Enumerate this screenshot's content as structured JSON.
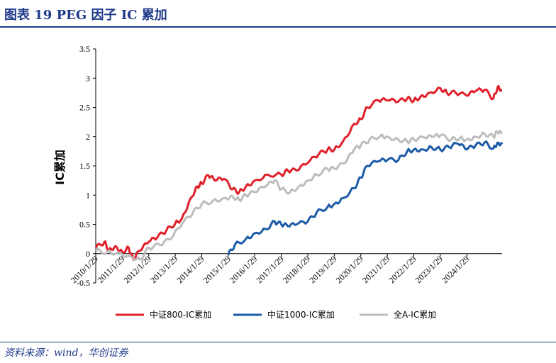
{
  "header": {
    "title": "图表 19   PEG 因子 IC 累加"
  },
  "footer": {
    "source": "资料来源：wind，华创证券"
  },
  "chart_data": {
    "type": "line",
    "ylabel": "IC累加",
    "ylim": [
      -0.5,
      3.5
    ],
    "yticks": [
      "-0.5",
      "0",
      "0.5",
      "1",
      "1.5",
      "2",
      "2.5",
      "3",
      "3.5"
    ],
    "xlim": [
      "2010-01-29",
      "2025-05-29"
    ],
    "xticks": [
      "2010/1/29",
      "2011/1/29",
      "2012/1/29",
      "2013/1/29",
      "2014/1/29",
      "2015/1/29",
      "2016/1/29",
      "2017/1/29",
      "2018/1/29",
      "2019/1/29",
      "2020/1/29",
      "2021/1/29",
      "2022/1/29",
      "2023/1/29",
      "2024/1/29"
    ],
    "grid": false,
    "legend_position": "bottom",
    "series": [
      {
        "name": "中证800-IC累加",
        "color": "#e0202a",
        "points": [
          [
            "2010-01-29",
            0.1
          ],
          [
            "2010-05-29",
            0.2
          ],
          [
            "2010-07-29",
            0.06
          ],
          [
            "2010-10-29",
            0.13
          ],
          [
            "2011-01-29",
            0.03
          ],
          [
            "2011-04-29",
            0.1
          ],
          [
            "2011-06-29",
            -0.1
          ],
          [
            "2011-09-29",
            0.05
          ],
          [
            "2012-01-29",
            0.2
          ],
          [
            "2012-05-29",
            0.28
          ],
          [
            "2012-09-29",
            0.4
          ],
          [
            "2013-01-29",
            0.52
          ],
          [
            "2013-04-29",
            0.6
          ],
          [
            "2013-08-29",
            0.95
          ],
          [
            "2013-11-29",
            1.15
          ],
          [
            "2014-01-29",
            1.2
          ],
          [
            "2014-04-29",
            1.34
          ],
          [
            "2014-07-29",
            1.25
          ],
          [
            "2014-11-29",
            1.28
          ],
          [
            "2015-03-29",
            1.1
          ],
          [
            "2015-06-29",
            1.05
          ],
          [
            "2015-09-29",
            1.15
          ],
          [
            "2016-01-29",
            1.25
          ],
          [
            "2016-07-29",
            1.35
          ],
          [
            "2017-01-29",
            1.35
          ],
          [
            "2017-04-29",
            1.42
          ],
          [
            "2017-08-29",
            1.42
          ],
          [
            "2018-01-29",
            1.55
          ],
          [
            "2018-06-29",
            1.7
          ],
          [
            "2018-10-29",
            1.78
          ],
          [
            "2019-01-29",
            1.78
          ],
          [
            "2019-05-29",
            1.92
          ],
          [
            "2019-10-29",
            2.22
          ],
          [
            "2020-01-29",
            2.3
          ],
          [
            "2020-04-29",
            2.5
          ],
          [
            "2020-09-29",
            2.62
          ],
          [
            "2021-01-29",
            2.62
          ],
          [
            "2021-06-29",
            2.6
          ],
          [
            "2021-10-29",
            2.65
          ],
          [
            "2022-01-29",
            2.62
          ],
          [
            "2022-04-29",
            2.68
          ],
          [
            "2022-08-29",
            2.75
          ],
          [
            "2023-01-29",
            2.83
          ],
          [
            "2023-04-29",
            2.75
          ],
          [
            "2023-08-29",
            2.75
          ],
          [
            "2024-01-29",
            2.7
          ],
          [
            "2024-05-29",
            2.78
          ],
          [
            "2024-09-29",
            2.8
          ],
          [
            "2025-01-29",
            2.65
          ],
          [
            "2025-03-29",
            2.85
          ],
          [
            "2025-05-29",
            2.8
          ]
        ]
      },
      {
        "name": "中证1000-IC累加",
        "color": "#1c5ba7",
        "points": [
          [
            "2015-01-29",
            -0.02
          ],
          [
            "2015-04-29",
            0.15
          ],
          [
            "2015-09-29",
            0.25
          ],
          [
            "2016-01-29",
            0.35
          ],
          [
            "2016-06-29",
            0.42
          ],
          [
            "2016-10-29",
            0.55
          ],
          [
            "2017-01-29",
            0.5
          ],
          [
            "2017-04-29",
            0.47
          ],
          [
            "2017-08-29",
            0.5
          ],
          [
            "2018-01-29",
            0.55
          ],
          [
            "2018-05-29",
            0.7
          ],
          [
            "2018-10-29",
            0.8
          ],
          [
            "2019-01-29",
            0.85
          ],
          [
            "2019-05-29",
            0.95
          ],
          [
            "2019-10-29",
            1.12
          ],
          [
            "2020-01-29",
            1.3
          ],
          [
            "2020-04-29",
            1.5
          ],
          [
            "2020-09-29",
            1.58
          ],
          [
            "2021-01-29",
            1.6
          ],
          [
            "2021-06-29",
            1.6
          ],
          [
            "2021-10-29",
            1.75
          ],
          [
            "2022-01-29",
            1.78
          ],
          [
            "2022-05-29",
            1.78
          ],
          [
            "2022-09-29",
            1.82
          ],
          [
            "2023-01-29",
            1.78
          ],
          [
            "2023-05-29",
            1.82
          ],
          [
            "2023-09-29",
            1.88
          ],
          [
            "2024-01-29",
            1.78
          ],
          [
            "2024-05-29",
            1.85
          ],
          [
            "2024-09-29",
            1.9
          ],
          [
            "2025-01-29",
            1.8
          ],
          [
            "2025-03-29",
            1.9
          ],
          [
            "2025-05-29",
            1.87
          ]
        ]
      },
      {
        "name": "全A-IC累加",
        "color": "#bdbdbd",
        "points": [
          [
            "2010-01-29",
            0.05
          ],
          [
            "2010-06-29",
            0.02
          ],
          [
            "2010-11-29",
            0.02
          ],
          [
            "2011-05-29",
            -0.05
          ],
          [
            "2011-09-29",
            -0.1
          ],
          [
            "2012-01-29",
            0.1
          ],
          [
            "2012-06-29",
            0.15
          ],
          [
            "2012-11-29",
            0.25
          ],
          [
            "2013-04-29",
            0.5
          ],
          [
            "2013-09-29",
            0.7
          ],
          [
            "2014-01-29",
            0.85
          ],
          [
            "2014-06-29",
            0.9
          ],
          [
            "2014-11-29",
            0.95
          ],
          [
            "2015-03-29",
            0.98
          ],
          [
            "2015-06-29",
            0.92
          ],
          [
            "2015-09-29",
            1.0
          ],
          [
            "2016-01-29",
            1.05
          ],
          [
            "2016-06-29",
            1.15
          ],
          [
            "2016-10-29",
            1.25
          ],
          [
            "2017-01-29",
            1.1
          ],
          [
            "2017-05-29",
            1.05
          ],
          [
            "2017-09-29",
            1.15
          ],
          [
            "2018-01-29",
            1.25
          ],
          [
            "2018-05-29",
            1.35
          ],
          [
            "2018-10-29",
            1.45
          ],
          [
            "2019-01-29",
            1.45
          ],
          [
            "2019-06-29",
            1.55
          ],
          [
            "2019-10-29",
            1.78
          ],
          [
            "2020-01-29",
            1.85
          ],
          [
            "2020-05-29",
            1.95
          ],
          [
            "2020-10-29",
            2.02
          ],
          [
            "2021-01-29",
            2.0
          ],
          [
            "2021-06-29",
            1.95
          ],
          [
            "2021-10-29",
            1.92
          ],
          [
            "2022-01-29",
            1.95
          ],
          [
            "2022-06-29",
            1.98
          ],
          [
            "2022-10-29",
            2.0
          ],
          [
            "2023-01-29",
            2.02
          ],
          [
            "2023-06-29",
            1.95
          ],
          [
            "2023-10-29",
            1.98
          ],
          [
            "2024-01-29",
            1.95
          ],
          [
            "2024-05-29",
            2.0
          ],
          [
            "2024-09-29",
            2.05
          ],
          [
            "2025-01-29",
            2.0
          ],
          [
            "2025-03-29",
            2.08
          ],
          [
            "2025-05-29",
            2.05
          ]
        ]
      }
    ]
  }
}
